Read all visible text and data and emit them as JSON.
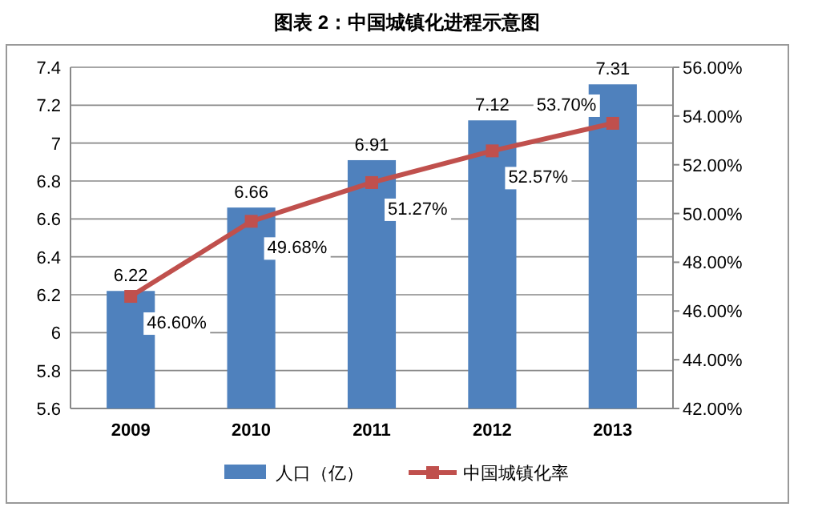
{
  "chart_data": {
    "type": "bar",
    "title": "图表 2：中国城镇化进程示意图",
    "categories": [
      "2009",
      "2010",
      "2011",
      "2012",
      "2013"
    ],
    "series": [
      {
        "name": "人口（亿）",
        "color": "#4f81bd",
        "values": [
          6.22,
          6.66,
          6.91,
          7.12,
          7.31
        ],
        "value_labels": [
          "6.22",
          "6.66",
          "6.91",
          "7.12",
          "7.31"
        ]
      },
      {
        "name": "中国城镇化率",
        "type": "line",
        "axis": "y2",
        "color": "#c0504d",
        "marker": "square",
        "values": [
          46.6,
          49.68,
          51.27,
          52.57,
          53.7
        ],
        "value_labels": [
          "46.60%",
          "49.68%",
          "51.27%",
          "52.57%",
          "53.70%"
        ]
      }
    ],
    "ylim": [
      5.6,
      7.4
    ],
    "yticks": [
      5.6,
      5.8,
      6,
      6.2,
      6.4,
      6.6,
      6.8,
      7,
      7.2,
      7.4
    ],
    "y2lim": [
      42,
      56
    ],
    "y2ticks": [
      {
        "value": 42,
        "label": "42.00%"
      },
      {
        "value": 44,
        "label": "44.00%"
      },
      {
        "value": 46,
        "label": "46.00%"
      },
      {
        "value": 48,
        "label": "48.00%"
      },
      {
        "value": 50,
        "label": "50.00%"
      },
      {
        "value": 52,
        "label": "52.00%"
      },
      {
        "value": 54,
        "label": "54.00%"
      },
      {
        "value": 56,
        "label": "56.00%"
      }
    ],
    "grid": "y",
    "legend": "bottom"
  }
}
